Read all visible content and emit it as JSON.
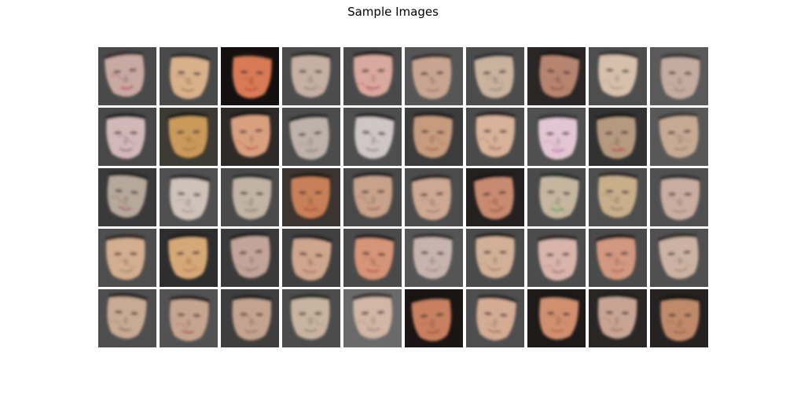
{
  "figure": {
    "title": "Sample Images"
  },
  "samples": {
    "rows": 5,
    "cols": 10,
    "tiles": [
      {
        "bg": "#4a4a4a",
        "skin": "#c9a9a2",
        "hair": "#3a3232",
        "accent": "#b03050"
      },
      {
        "bg": "#4a4a4a",
        "skin": "#d8b08a",
        "hair": "#2e2a28",
        "accent": "#a06a50"
      },
      {
        "bg": "#141010",
        "skin": "#d87a55",
        "hair": "#1a1210",
        "accent": "#b04a38"
      },
      {
        "bg": "#4c4c4c",
        "skin": "#c6b0a4",
        "hair": "#2a2a2a",
        "accent": "#8a7a70"
      },
      {
        "bg": "#4a4a4a",
        "skin": "#d9a89e",
        "hair": "#2a2020",
        "accent": "#b04a60"
      },
      {
        "bg": "#565656",
        "skin": "#c8a592",
        "hair": "#3a3030",
        "accent": "#9a7060"
      },
      {
        "bg": "#4c4c4c",
        "skin": "#c9b29e",
        "hair": "#303030",
        "accent": "#8a8070"
      },
      {
        "bg": "#2a2626",
        "skin": "#b78470",
        "hair": "#1e1816",
        "accent": "#8a4a3a"
      },
      {
        "bg": "#4e4e4e",
        "skin": "#d6c0ac",
        "hair": "#3a3434",
        "accent": "#b09a88"
      },
      {
        "bg": "#5a5a5a",
        "skin": "#c4aca0",
        "hair": "#3e3838",
        "accent": "#9a8a7a"
      },
      {
        "bg": "#484848",
        "skin": "#d2b8b8",
        "hair": "#222222",
        "accent": "#8a6070"
      },
      {
        "bg": "#3e3a34",
        "skin": "#c99a5a",
        "hair": "#1e1a16",
        "accent": "#a0703a"
      },
      {
        "bg": "#2e2a28",
        "skin": "#d9a080",
        "hair": "#1c1614",
        "accent": "#c04a30"
      },
      {
        "bg": "#4c4c4c",
        "skin": "#bfb2aa",
        "hair": "#2a2a2a",
        "accent": "#908078"
      },
      {
        "bg": "#4e4e4e",
        "skin": "#cfc6c6",
        "hair": "#262626",
        "accent": "#8a7a7a"
      },
      {
        "bg": "#3c3c3c",
        "skin": "#c79b7e",
        "hair": "#241e1c",
        "accent": "#b05a4a"
      },
      {
        "bg": "#4a4a4a",
        "skin": "#d8b29a",
        "hair": "#2a2222",
        "accent": "#a06050"
      },
      {
        "bg": "#505050",
        "skin": "#e2c6d2",
        "hair": "#343034",
        "accent": "#c060a0"
      },
      {
        "bg": "#323232",
        "skin": "#b69a80",
        "hair": "#1c1a18",
        "accent": "#c03030"
      },
      {
        "bg": "#585858",
        "skin": "#c6aa94",
        "hair": "#403a36",
        "accent": "#a07858"
      },
      {
        "bg": "#3a3a3a",
        "skin": "#b6a89a",
        "hair": "#262626",
        "accent": "#9a5060"
      },
      {
        "bg": "#505050",
        "skin": "#cfc2b8",
        "hair": "#2a2a2a",
        "accent": "#a09088"
      },
      {
        "bg": "#4a4a4a",
        "skin": "#c2b4a4",
        "hair": "#2e2e2e",
        "accent": "#8a7a6a"
      },
      {
        "bg": "#3c3430",
        "skin": "#c88058",
        "hair": "#221a16",
        "accent": "#b03a3a"
      },
      {
        "bg": "#484848",
        "skin": "#c8a28a",
        "hair": "#262020",
        "accent": "#9a6050"
      },
      {
        "bg": "#4c4c4c",
        "skin": "#cda893",
        "hair": "#2e2828",
        "accent": "#9a7a68"
      },
      {
        "bg": "#242020",
        "skin": "#c88a70",
        "hair": "#1a1412",
        "accent": "#a04a3a"
      },
      {
        "bg": "#4a4a4a",
        "skin": "#c6b6a0",
        "hair": "#283028",
        "accent": "#40a040"
      },
      {
        "bg": "#4e4e4e",
        "skin": "#c8ae8a",
        "hair": "#302c28",
        "accent": "#8a7a5a"
      },
      {
        "bg": "#505050",
        "skin": "#c9ada0",
        "hair": "#34302e",
        "accent": "#a08080"
      },
      {
        "bg": "#4e4e4e",
        "skin": "#d3ae90",
        "hair": "#302a26",
        "accent": "#a08060"
      },
      {
        "bg": "#2e2e2e",
        "skin": "#d6a878",
        "hair": "#1e1a16",
        "accent": "#b07840"
      },
      {
        "bg": "#3a3a3a",
        "skin": "#c2a49a",
        "hair": "#262222",
        "accent": "#9a7070"
      },
      {
        "bg": "#404040",
        "skin": "#cfa68e",
        "hair": "#262020",
        "accent": "#a06060"
      },
      {
        "bg": "#4a4a4a",
        "skin": "#d69478",
        "hair": "#2a2020",
        "accent": "#b05040"
      },
      {
        "bg": "#555555",
        "skin": "#c8b4ae",
        "hair": "#363232",
        "accent": "#9a8a86"
      },
      {
        "bg": "#4a4a4a",
        "skin": "#d2b098",
        "hair": "#2c2624",
        "accent": "#a07a60"
      },
      {
        "bg": "#4c4c4c",
        "skin": "#d8b4aa",
        "hair": "#2e2828",
        "accent": "#a07070"
      },
      {
        "bg": "#4a4a4a",
        "skin": "#d29880",
        "hair": "#2a2220",
        "accent": "#b05a48"
      },
      {
        "bg": "#505050",
        "skin": "#ccb2a2",
        "hair": "#36302e",
        "accent": "#9a8070"
      },
      {
        "bg": "#4e4e4e",
        "skin": "#c9aa94",
        "hair": "#2e2828",
        "accent": "#8a7060"
      },
      {
        "bg": "#525252",
        "skin": "#c6a590",
        "hair": "#2a2424",
        "accent": "#a05050"
      },
      {
        "bg": "#3e3e3e",
        "skin": "#c4a490",
        "hair": "#262020",
        "accent": "#9a6a5a"
      },
      {
        "bg": "#4c4c4c",
        "skin": "#c8b4a0",
        "hair": "#2e2a28",
        "accent": "#8a7a6a"
      },
      {
        "bg": "#6a6a6a",
        "skin": "#d2b6a6",
        "hair": "#3a3434",
        "accent": "#9a8070"
      },
      {
        "bg": "#1a1414",
        "skin": "#c88060",
        "hair": "#181210",
        "accent": "#a04a38"
      },
      {
        "bg": "#4e4e4e",
        "skin": "#d4ac94",
        "hair": "#2e2826",
        "accent": "#a07060"
      },
      {
        "bg": "#1e1a1a",
        "skin": "#d09070",
        "hair": "#181412",
        "accent": "#b05a40"
      },
      {
        "bg": "#2a2626",
        "skin": "#c8a494",
        "hair": "#1e1a18",
        "accent": "#9a6a5a"
      },
      {
        "bg": "#262222",
        "skin": "#c08a6a",
        "hair": "#161210",
        "accent": "#9a5a3a"
      }
    ]
  }
}
